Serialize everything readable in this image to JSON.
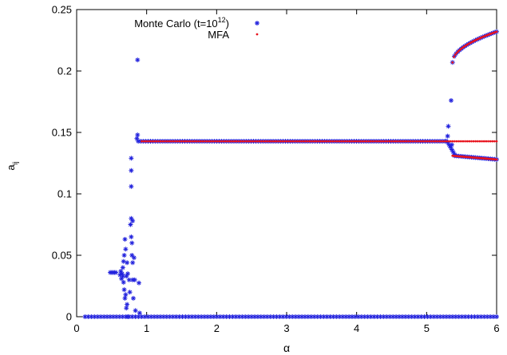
{
  "chart_data": {
    "type": "scatter",
    "xlabel": "α",
    "ylabel_main": "a",
    "ylabel_sub": "ij",
    "xlim": [
      0,
      6
    ],
    "ylim": [
      0,
      0.25
    ],
    "x_ticks": [
      0,
      1,
      2,
      3,
      4,
      5,
      6
    ],
    "x_tick_labels": [
      "0",
      "1",
      "2",
      "3",
      "4",
      "5",
      "6"
    ],
    "y_ticks": [
      0,
      0.05,
      0.1,
      0.15,
      0.2,
      0.25
    ],
    "y_tick_labels": [
      "0",
      "0.05",
      "0.1",
      "0.15",
      "0.2",
      "0.25"
    ],
    "grid": false,
    "legend_position": "top-center",
    "series": [
      {
        "name_main": "Monte Carlo (t=10",
        "name_sup": "12",
        "name_end": ")",
        "marker": "asterisk",
        "color": "#2222dd",
        "segments": [
          {
            "x_from": 0.12,
            "x_to": 6.0,
            "y_from": 0.0,
            "y_to": 0.0,
            "step": 0.045
          },
          {
            "x_from": 0.88,
            "x_to": 5.26,
            "y_from": 0.1428,
            "y_to": 0.1428,
            "step": 0.035
          },
          {
            "x_from": 5.3,
            "x_to": 5.4,
            "y_from": 0.142,
            "y_to": 0.132,
            "step": 0.02
          },
          {
            "x_from": 5.4,
            "x_to": 6.0,
            "y_from": 0.131,
            "y_to": 0.128,
            "step": 0.03
          },
          {
            "x_from": 5.37,
            "x_to": 6.0,
            "y_from": 0.207,
            "y_to": 0.232,
            "step": 0.025,
            "curve": "sqrt"
          }
        ],
        "points": [
          [
            0.48,
            0.036
          ],
          [
            0.5,
            0.036
          ],
          [
            0.52,
            0.036
          ],
          [
            0.54,
            0.036
          ],
          [
            0.56,
            0.036
          ],
          [
            0.62,
            0.034
          ],
          [
            0.63,
            0.037
          ],
          [
            0.64,
            0.031
          ],
          [
            0.65,
            0.035
          ],
          [
            0.66,
            0.04
          ],
          [
            0.66,
            0.033
          ],
          [
            0.67,
            0.028
          ],
          [
            0.67,
            0.045
          ],
          [
            0.68,
            0.05
          ],
          [
            0.68,
            0.022
          ],
          [
            0.69,
            0.063
          ],
          [
            0.69,
            0.015
          ],
          [
            0.7,
            0.055
          ],
          [
            0.7,
            0.018
          ],
          [
            0.71,
            0.033
          ],
          [
            0.71,
            0.007
          ],
          [
            0.72,
            0.044
          ],
          [
            0.72,
            0.01
          ],
          [
            0.73,
            0.035
          ],
          [
            0.73,
            0.0
          ],
          [
            0.75,
            0.03
          ],
          [
            0.76,
            0.02
          ],
          [
            0.77,
            0.075
          ],
          [
            0.78,
            0.129
          ],
          [
            0.78,
            0.119
          ],
          [
            0.78,
            0.106
          ],
          [
            0.78,
            0.08
          ],
          [
            0.78,
            0.065
          ],
          [
            0.79,
            0.06
          ],
          [
            0.79,
            0.05
          ],
          [
            0.8,
            0.078
          ],
          [
            0.8,
            0.044
          ],
          [
            0.8,
            0.03
          ],
          [
            0.81,
            0.015
          ],
          [
            0.82,
            0.048
          ],
          [
            0.83,
            0.03
          ],
          [
            0.84,
            0.005
          ],
          [
            0.86,
            0.145
          ],
          [
            0.87,
            0.209
          ],
          [
            0.87,
            0.148
          ],
          [
            0.89,
            0.0275
          ],
          [
            0.9,
            0.003
          ],
          [
            5.28,
            0.143
          ],
          [
            5.3,
            0.147
          ],
          [
            5.31,
            0.155
          ],
          [
            5.35,
            0.176
          ],
          [
            5.36,
            0.14
          ]
        ]
      },
      {
        "name": "MFA",
        "marker": "dot",
        "color": "#e8141e",
        "segments": [
          {
            "x_from": 0.93,
            "x_to": 6.0,
            "y_from": 0.1428,
            "y_to": 0.1428,
            "step": 0.03
          },
          {
            "x_from": 5.37,
            "x_to": 6.0,
            "y_from": 0.207,
            "y_to": 0.232,
            "step": 0.02,
            "curve": "sqrt"
          },
          {
            "x_from": 5.37,
            "x_to": 6.0,
            "y_from": 0.131,
            "y_to": 0.128,
            "step": 0.02
          }
        ],
        "points": []
      }
    ]
  }
}
